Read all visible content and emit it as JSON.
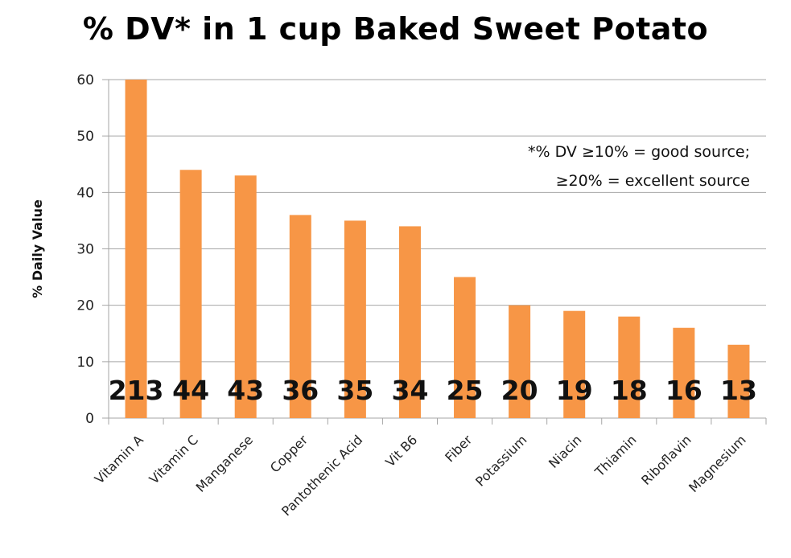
{
  "chart_data": {
    "type": "bar",
    "title": "% DV* in 1 cup Baked Sweet Potato",
    "xlabel": "",
    "ylabel": "% Daily Value",
    "ylim": [
      0,
      60
    ],
    "yticks": [
      0,
      10,
      20,
      30,
      40,
      50,
      60
    ],
    "grid": true,
    "categories": [
      "Vitamin A",
      "Vitamin C",
      "Manganese",
      "Copper",
      "Pantothenic Acid",
      "Vit B6",
      "Fiber",
      "Potassium",
      "Niacin",
      "Thiamin",
      "Riboflavin",
      "Magnesium"
    ],
    "values": [
      213,
      44,
      43,
      36,
      35,
      34,
      25,
      20,
      19,
      18,
      16,
      13
    ],
    "data_labels": [
      "213",
      "44",
      "43",
      "36",
      "35",
      "34",
      "25",
      "20",
      "19",
      "18",
      "16",
      "13"
    ],
    "annotation": [
      "*% DV ≥10% = good source;",
      "≥20% = excellent source"
    ],
    "colors": {
      "bar": "#F79646",
      "grid": "#A6A6A6"
    }
  }
}
